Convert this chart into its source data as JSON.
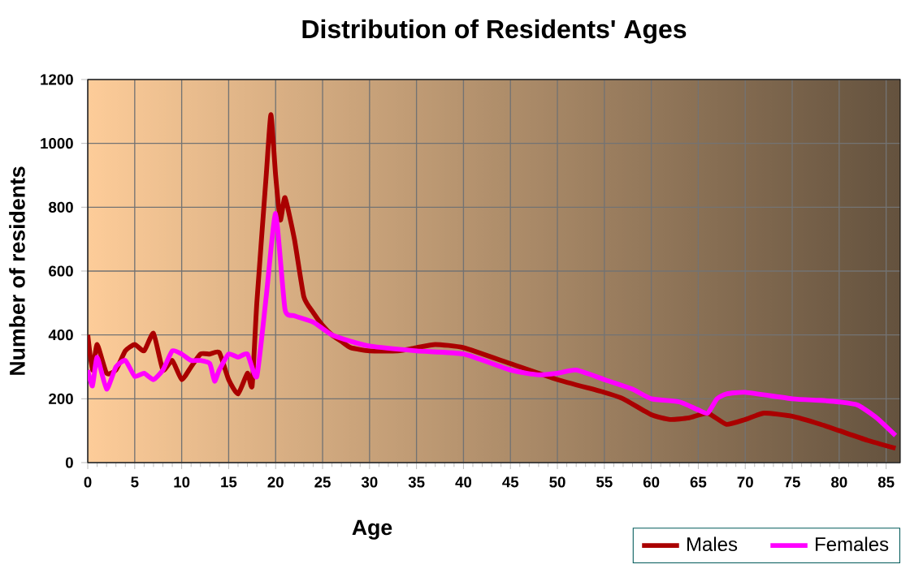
{
  "chart_data": {
    "type": "line",
    "title": "Distribution of Residents' Ages",
    "xlabel": "Age",
    "ylabel": "Number of residents",
    "x": [
      0,
      0.5,
      1,
      2,
      3,
      4,
      5,
      6,
      7,
      8,
      9,
      10,
      11,
      12,
      13,
      14,
      15,
      16,
      17,
      17.5,
      18,
      19,
      19.5,
      20,
      20.5,
      21,
      22,
      23,
      24,
      25,
      26,
      27,
      28,
      30,
      33,
      35,
      37,
      40,
      45,
      50,
      55,
      57,
      60,
      62,
      64,
      66,
      68,
      70,
      72,
      75,
      78,
      80,
      83,
      86
    ],
    "series": [
      {
        "name": "Males",
        "color": "#aa0000",
        "values": [
          400,
          290,
          370,
          280,
          290,
          350,
          370,
          350,
          405,
          290,
          320,
          260,
          300,
          340,
          340,
          345,
          260,
          215,
          280,
          240,
          500,
          900,
          1090,
          900,
          760,
          830,
          700,
          520,
          470,
          430,
          400,
          380,
          360,
          350,
          350,
          360,
          370,
          360,
          310,
          260,
          220,
          200,
          150,
          135,
          140,
          155,
          120,
          135,
          155,
          145,
          120,
          100,
          70,
          45
        ]
      },
      {
        "name": "Females",
        "color": "#ff00ff",
        "x": [
          0,
          0.5,
          1,
          2,
          3,
          4,
          5,
          6,
          7,
          8,
          9,
          10,
          11,
          12,
          13,
          13.5,
          14,
          15,
          16,
          17,
          18,
          19,
          20,
          21,
          22,
          24,
          26,
          28,
          30,
          35,
          40,
          45,
          48,
          50,
          52,
          55,
          58,
          60,
          63,
          65,
          66,
          67,
          68,
          70,
          75,
          78,
          80,
          82,
          84,
          86
        ],
        "values": [
          290,
          240,
          330,
          230,
          300,
          320,
          270,
          280,
          260,
          290,
          350,
          340,
          320,
          320,
          310,
          255,
          290,
          340,
          330,
          340,
          270,
          520,
          780,
          480,
          460,
          440,
          400,
          380,
          365,
          350,
          340,
          290,
          275,
          280,
          290,
          260,
          230,
          200,
          190,
          165,
          155,
          200,
          215,
          220,
          200,
          195,
          190,
          180,
          140,
          85
        ]
      }
    ],
    "xlim": [
      0,
      86.5
    ],
    "ylim": [
      0,
      1200
    ],
    "xticks": [
      0,
      5,
      10,
      15,
      20,
      25,
      30,
      35,
      40,
      45,
      50,
      55,
      60,
      65,
      70,
      75,
      80,
      85
    ],
    "yticks": [
      0,
      200,
      400,
      600,
      800,
      1000,
      1200
    ],
    "grid": true,
    "legend": "bottom right",
    "marker": "none",
    "line_style": "solid"
  }
}
